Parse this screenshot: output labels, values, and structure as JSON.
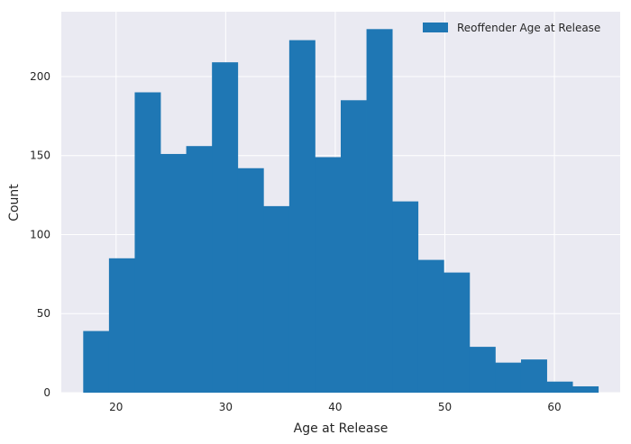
{
  "chart_data": {
    "type": "bar",
    "subtype": "histogram",
    "title": "",
    "xlabel": "Age at Release",
    "ylabel": "Count",
    "xlim": [
      15,
      66
    ],
    "ylim": [
      0,
      241
    ],
    "x_ticks": [
      20,
      30,
      40,
      50,
      60
    ],
    "y_ticks": [
      0,
      50,
      100,
      150,
      200
    ],
    "bin_edges": [
      17,
      19.35,
      21.7,
      24.05,
      26.4,
      28.75,
      31.1,
      33.45,
      35.8,
      38.15,
      40.5,
      42.85,
      45.2,
      47.55,
      49.9,
      52.25,
      54.6,
      56.95,
      59.3,
      61.65,
      64
    ],
    "series": [
      {
        "name": "Reoffender Age at Release",
        "color": "#1f77b4",
        "values": [
          39,
          85,
          190,
          151,
          156,
          209,
          142,
          118,
          223,
          149,
          185,
          230,
          121,
          84,
          76,
          29,
          19,
          21,
          7,
          4
        ]
      }
    ],
    "grid": true,
    "legend_position": "top-right",
    "background": "#eaeaf2"
  }
}
